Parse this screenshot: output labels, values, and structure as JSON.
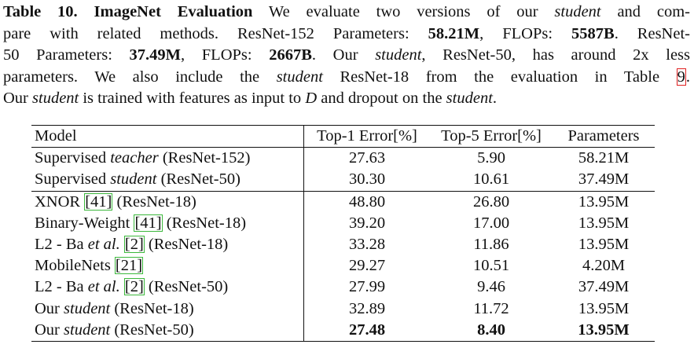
{
  "caption": {
    "lines": [
      [
        {
          "text": "Table 10. ImageNet Evaluation",
          "style": "b"
        },
        {
          "text": " We evaluate two versions of our "
        },
        {
          "text": "student",
          "style": "i"
        },
        {
          "text": " and com-"
        }
      ],
      [
        {
          "text": "pare with related methods. ResNet-152 Parameters: "
        },
        {
          "text": "58.21M",
          "style": "b"
        },
        {
          "text": ", FLOPs: "
        },
        {
          "text": "5587B",
          "style": "b"
        },
        {
          "text": ". ResNet-"
        }
      ],
      [
        {
          "text": "50 Parameters: "
        },
        {
          "text": "37.49M",
          "style": "b"
        },
        {
          "text": ", FLOPs: "
        },
        {
          "text": "2667B",
          "style": "b"
        },
        {
          "text": ". Our "
        },
        {
          "text": "student",
          "style": "i"
        },
        {
          "text": ", ResNet-50, has around 2x less"
        }
      ],
      [
        {
          "text": "parameters. We also include the "
        },
        {
          "text": "student",
          "style": "i"
        },
        {
          "text": " ResNet-18 from the evaluation in Table "
        },
        {
          "text": "9",
          "style": "refred"
        },
        {
          "text": "."
        }
      ],
      [
        {
          "text": "Our "
        },
        {
          "text": "student",
          "style": "i"
        },
        {
          "text": " is trained with features as input to "
        },
        {
          "text": "D",
          "style": "i"
        },
        {
          "text": " and dropout on the "
        },
        {
          "text": "student",
          "style": "i"
        },
        {
          "text": "."
        }
      ]
    ]
  },
  "table": {
    "header": [
      "Model",
      "Top-1 Error[%]",
      "Top-5 Error[%]",
      "Parameters"
    ],
    "rows": [
      {
        "model": [
          {
            "text": "Supervised "
          },
          {
            "text": "teacher",
            "style": "i"
          },
          {
            "text": " (ResNet-152)"
          }
        ],
        "cells": [
          "27.63",
          "5.90",
          "58.21M"
        ]
      },
      {
        "model": [
          {
            "text": "Supervised "
          },
          {
            "text": "student",
            "style": "i"
          },
          {
            "text": " (ResNet-50)"
          }
        ],
        "cells": [
          "30.30",
          "10.61",
          "37.49M"
        ]
      },
      {
        "model": [
          {
            "text": "XNOR "
          },
          {
            "text": "[41]",
            "style": "ref"
          },
          {
            "text": " (ResNet-18)"
          }
        ],
        "cells": [
          "48.80",
          "26.80",
          "13.95M"
        ]
      },
      {
        "model": [
          {
            "text": "Binary-Weight "
          },
          {
            "text": "[41]",
            "style": "ref"
          },
          {
            "text": " (ResNet-18)"
          }
        ],
        "cells": [
          "39.20",
          "17.00",
          "13.95M"
        ]
      },
      {
        "model": [
          {
            "text": "L2 - Ba "
          },
          {
            "text": "et al.",
            "style": "i"
          },
          {
            "text": " "
          },
          {
            "text": "[2]",
            "style": "ref"
          },
          {
            "text": " (ResNet-18)"
          }
        ],
        "cells": [
          "33.28",
          "11.86",
          "13.95M"
        ]
      },
      {
        "model": [
          {
            "text": "MobileNets "
          },
          {
            "text": "[21]",
            "style": "ref"
          }
        ],
        "cells": [
          "29.27",
          "10.51",
          "4.20M"
        ]
      },
      {
        "model": [
          {
            "text": "L2 - Ba "
          },
          {
            "text": "et al.",
            "style": "i"
          },
          {
            "text": " "
          },
          {
            "text": "[2]",
            "style": "ref"
          },
          {
            "text": " (ResNet-50)"
          }
        ],
        "cells": [
          "27.99",
          "9.46",
          "37.49M"
        ]
      },
      {
        "model": [
          {
            "text": "Our "
          },
          {
            "text": "student",
            "style": "i"
          },
          {
            "text": " (ResNet-18)"
          }
        ],
        "cells": [
          "32.89",
          "11.72",
          "13.95M"
        ]
      },
      {
        "model": [
          {
            "text": "Our "
          },
          {
            "text": "student",
            "style": "i"
          },
          {
            "text": " (ResNet-50)"
          }
        ],
        "cells": [
          "27.48",
          "8.40",
          "13.95M"
        ],
        "bold": true
      }
    ]
  }
}
